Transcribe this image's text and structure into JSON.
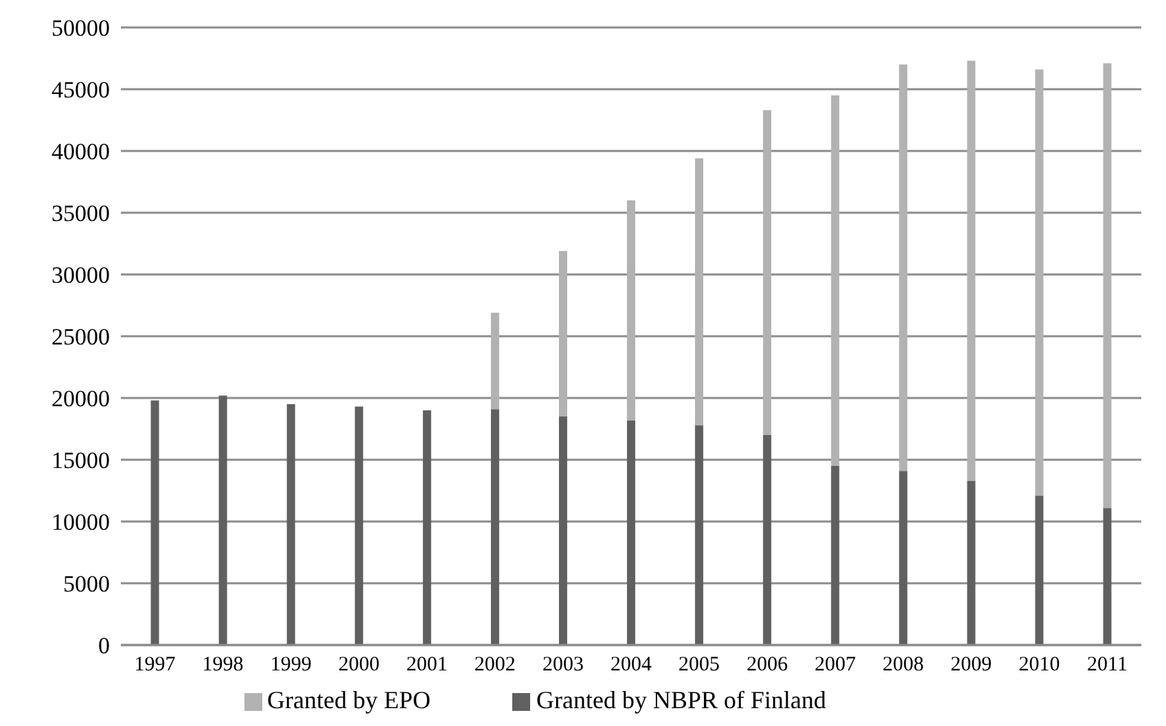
{
  "chart_data": {
    "type": "bar",
    "stacked": true,
    "categories": [
      "1997",
      "1998",
      "1999",
      "2000",
      "2001",
      "2002",
      "2003",
      "2004",
      "2005",
      "2006",
      "2007",
      "2008",
      "2009",
      "2010",
      "2011"
    ],
    "series": [
      {
        "name": "Granted by NBPR of Finland",
        "color": "#606060",
        "values": [
          19800,
          20200,
          19500,
          19300,
          19000,
          19100,
          18500,
          18200,
          17800,
          17000,
          14500,
          14100,
          13300,
          12100,
          11100
        ]
      },
      {
        "name": "Granted by EPO",
        "color": "#b2b2b2",
        "values": [
          0,
          0,
          0,
          0,
          0,
          7800,
          13400,
          17800,
          21600,
          26300,
          30000,
          32900,
          34000,
          34500,
          36000
        ]
      }
    ],
    "ylim": [
      0,
      50000
    ],
    "yticks": [
      0,
      5000,
      10000,
      15000,
      20000,
      25000,
      30000,
      35000,
      40000,
      45000,
      50000
    ],
    "grid": "y",
    "legend": "bottom"
  }
}
